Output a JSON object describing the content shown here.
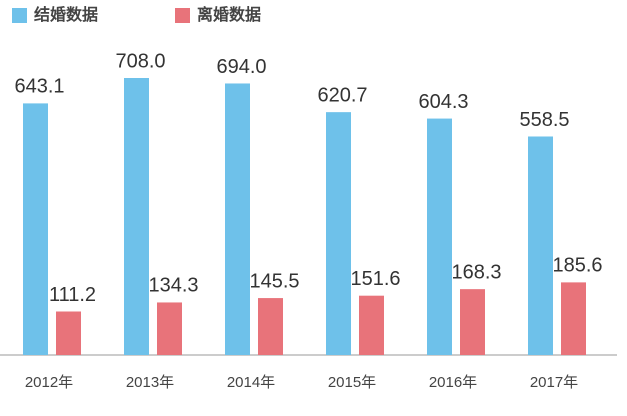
{
  "chart_data": {
    "type": "bar",
    "categories": [
      "2012年",
      "2013年",
      "2014年",
      "2015年",
      "2016年",
      "2017年"
    ],
    "series": [
      {
        "name": "结婚数据",
        "color": "#6ec1ea",
        "values": [
          643.1,
          708.0,
          694.0,
          620.7,
          604.3,
          558.5
        ],
        "value_labels": [
          "643.1",
          "708.0",
          "694.0",
          "620.7",
          "604.3",
          "558.5"
        ]
      },
      {
        "name": "离婚数据",
        "color": "#e8737a",
        "values": [
          111.2,
          134.3,
          145.5,
          151.6,
          168.3,
          185.6
        ],
        "value_labels": [
          "111.2",
          "134.3",
          "145.5",
          "151.6",
          "168.3",
          "185.6"
        ]
      }
    ]
  }
}
